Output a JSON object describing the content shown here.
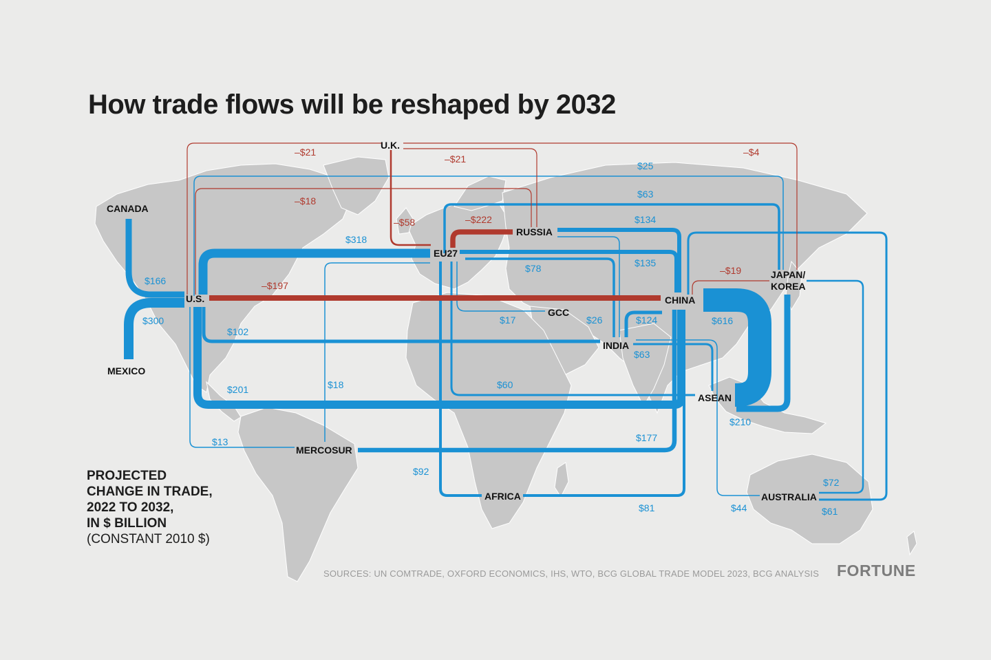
{
  "header": {
    "title": "How trade flows will be reshaped by 2032"
  },
  "legend": {
    "line1": "PROJECTED",
    "line2": "CHANGE IN TRADE,",
    "line3": "2022 TO 2032,",
    "line4": "IN $ BILLION",
    "line5": "(CONSTANT 2010 $)"
  },
  "footer": {
    "sources": "SOURCES: UN COMTRADE, OXFORD ECONOMICS, IHS, WTO, BCG GLOBAL TRADE MODEL 2023, BCG ANALYSIS",
    "brand": "FORTUNE"
  },
  "colors": {
    "increase": "#1a91d4",
    "decrease": "#b03a2e",
    "land": "#c7c7c7",
    "background": "#ebebea",
    "region_text": "#111111"
  },
  "regions": [
    "CANADA",
    "U.S.",
    "MEXICO",
    "U.K.",
    "EU27",
    "RUSSIA",
    "GCC",
    "INDIA",
    "CHINA",
    "JAPAN/ KOREA",
    "ASEAN",
    "MERCOSUR",
    "AFRICA",
    "AUSTRALIA"
  ],
  "flows": [
    {
      "from": "U.K.",
      "to": "U.S.",
      "value_label": "–$21",
      "value": -21
    },
    {
      "from": "U.K.",
      "to": "RUSSIA",
      "value_label": "–$21",
      "value": -21
    },
    {
      "from": "U.K.",
      "to": "JAPAN/KOREA",
      "value_label": "–$4",
      "value": -4
    },
    {
      "from": "U.K.",
      "to": "EU27",
      "value_label": "–$58",
      "value": -58
    },
    {
      "from": "U.S.",
      "to": "RUSSIA",
      "value_label": "–$18",
      "value": -18
    },
    {
      "from": "EU27",
      "to": "RUSSIA",
      "value_label": "–$222",
      "value": -222
    },
    {
      "from": "U.S.",
      "to": "CHINA",
      "value_label": "–$197",
      "value": -197
    },
    {
      "from": "CHINA",
      "to": "JAPAN/KOREA",
      "value_label": "–$19",
      "value": -19
    },
    {
      "from": "U.S.",
      "to": "JAPAN/KOREA",
      "value_label": "$25",
      "value": 25
    },
    {
      "from": "EU27",
      "to": "JAPAN/KOREA",
      "value_label": "$63",
      "value": 63
    },
    {
      "from": "RUSSIA",
      "to": "CHINA",
      "value_label": "$134",
      "value": 134
    },
    {
      "from": "EU27",
      "to": "CHINA",
      "value_label": "$135",
      "value": 135
    },
    {
      "from": "U.S.",
      "to": "EU27",
      "value_label": "$318",
      "value": 318
    },
    {
      "from": "EU27",
      "to": "INDIA",
      "value_label": "$78",
      "value": 78
    },
    {
      "from": "CANADA",
      "to": "U.S.",
      "value_label": "$166",
      "value": 166
    },
    {
      "from": "MEXICO",
      "to": "U.S.",
      "value_label": "$300",
      "value": 300
    },
    {
      "from": "EU27",
      "to": "GCC",
      "value_label": "$17",
      "value": 17
    },
    {
      "from": "RUSSIA",
      "to": "INDIA",
      "value_label": "$26",
      "value": 26
    },
    {
      "from": "INDIA",
      "to": "CHINA",
      "value_label": "$124",
      "value": 124
    },
    {
      "from": "CHINA",
      "to": "ASEAN",
      "value_label": "$616",
      "value": 616
    },
    {
      "from": "U.S.",
      "to": "INDIA",
      "value_label": "$102",
      "value": 102
    },
    {
      "from": "INDIA",
      "to": "ASEAN",
      "value_label": "$63",
      "value": 63
    },
    {
      "from": "EU27",
      "to": "MERCOSUR",
      "value_label": "$18",
      "value": 18
    },
    {
      "from": "EU27",
      "to": "ASEAN",
      "value_label": "$60",
      "value": 60
    },
    {
      "from": "U.S.",
      "to": "ASEAN",
      "value_label": "$201",
      "value": 201
    },
    {
      "from": "JAPAN/KOREA",
      "to": "ASEAN",
      "value_label": "$210",
      "value": 210
    },
    {
      "from": "U.S.",
      "to": "MERCOSUR",
      "value_label": "$13",
      "value": 13
    },
    {
      "from": "MERCOSUR",
      "to": "CHINA",
      "value_label": "$177",
      "value": 177
    },
    {
      "from": "EU27",
      "to": "AFRICA",
      "value_label": "$92",
      "value": 92
    },
    {
      "from": "AFRICA",
      "to": "CHINA",
      "value_label": "$81",
      "value": 81
    },
    {
      "from": "JAPAN/KOREA",
      "to": "AUSTRALIA",
      "value_label": "$72",
      "value": 72
    },
    {
      "from": "INDIA",
      "to": "AUSTRALIA",
      "value_label": "$44",
      "value": 44
    },
    {
      "from": "CHINA",
      "to": "AUSTRALIA",
      "value_label": "$61",
      "value": 61
    }
  ]
}
